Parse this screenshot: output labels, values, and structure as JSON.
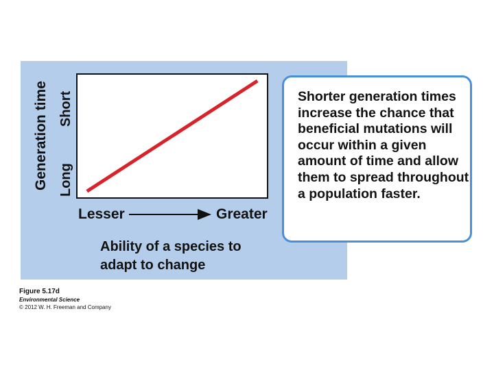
{
  "chart_data": {
    "type": "line",
    "title": "",
    "xlabel": "Ability of a species to adapt to change",
    "ylabel": "Generation time",
    "x_tick_labels": [
      "Lesser",
      "Greater"
    ],
    "y_tick_labels": [
      "Long",
      "Short"
    ],
    "x": [
      0.05,
      0.95
    ],
    "series": [
      {
        "values": [
          0.05,
          0.95
        ],
        "color": "#d9232a"
      }
    ],
    "xlim": [
      0,
      1
    ],
    "ylim": [
      0,
      1
    ],
    "grid": false,
    "callout": "Shorter generation times increase the chance that beneficial mutations will occur within a given amount of time and allow them to spread throughout a population faster."
  },
  "caption": {
    "figure": "Figure 5.17d",
    "book": "Environmental Science",
    "copyright": "© 2012 W. H. Freeman and Company"
  },
  "colors": {
    "panel_bg": "#b4cdea",
    "line": "#d9232a",
    "callout_border": "#4a90d9"
  }
}
